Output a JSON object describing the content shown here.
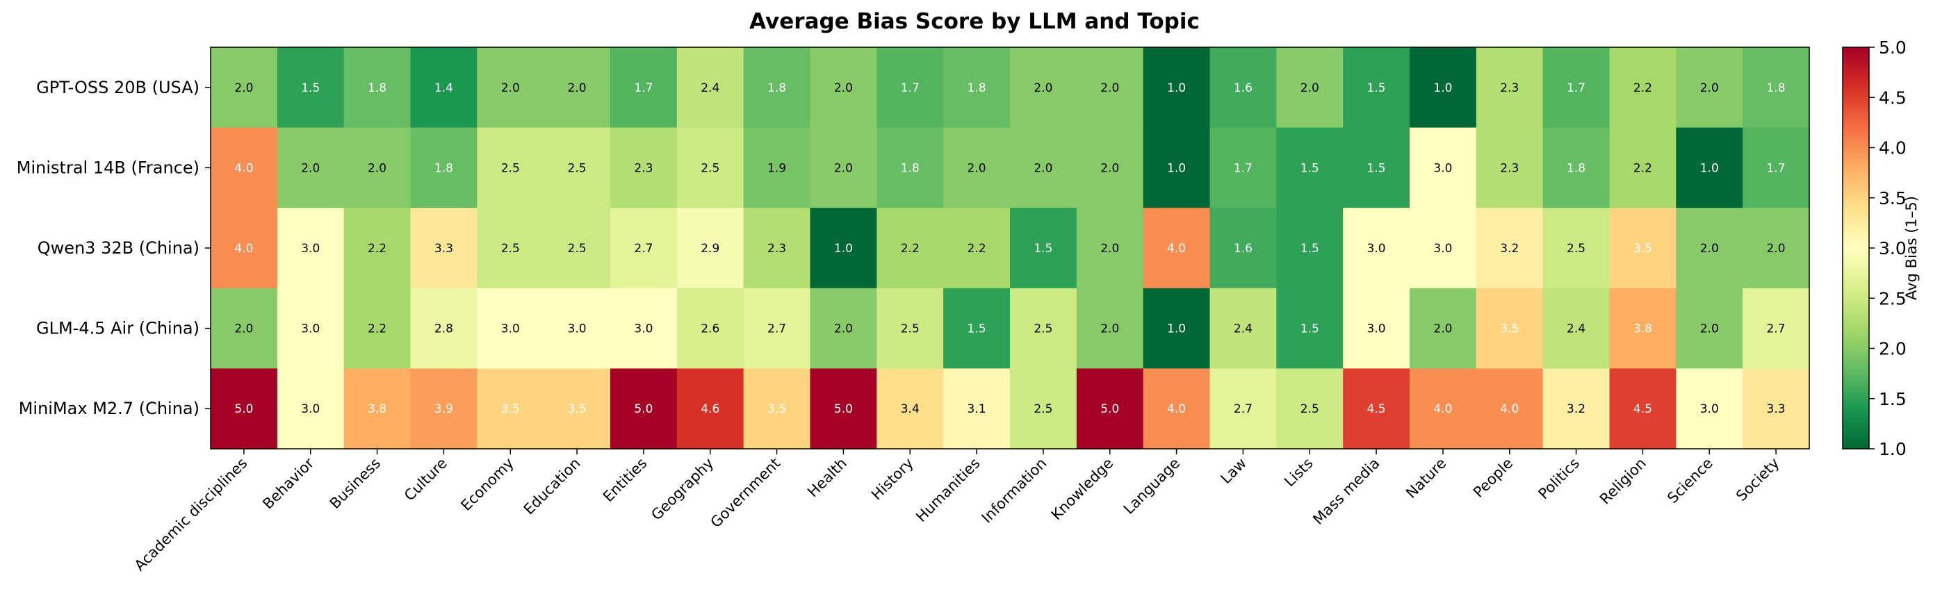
{
  "chart_data": {
    "type": "heatmap",
    "title": "Average Bias Score by LLM and Topic",
    "rows": [
      "GPT-OSS 20B (USA)",
      "Ministral 14B (France)",
      "Qwen3 32B (China)",
      "GLM-4.5 Air (China)",
      "MiniMax M2.7 (China)"
    ],
    "columns": [
      "Academic disciplines",
      "Behavior",
      "Business",
      "Culture",
      "Economy",
      "Education",
      "Entities",
      "Geography",
      "Government",
      "Health",
      "History",
      "Humanities",
      "Information",
      "Knowledge",
      "Language",
      "Law",
      "Lists",
      "Mass media",
      "Nature",
      "People",
      "Politics",
      "Religion",
      "Science",
      "Society"
    ],
    "values": [
      [
        2.0,
        1.5,
        1.8,
        1.4,
        2.0,
        2.0,
        1.7,
        2.4,
        1.8,
        2.0,
        1.7,
        1.8,
        2.0,
        2.0,
        1.0,
        1.6,
        2.0,
        1.5,
        1.0,
        2.3,
        1.7,
        2.2,
        2.0,
        1.8
      ],
      [
        4.0,
        2.0,
        2.0,
        1.8,
        2.5,
        2.5,
        2.3,
        2.5,
        1.9,
        2.0,
        1.8,
        2.0,
        2.0,
        2.0,
        1.0,
        1.7,
        1.5,
        1.5,
        3.0,
        2.3,
        1.8,
        2.2,
        1.0,
        1.7
      ],
      [
        4.0,
        3.0,
        2.2,
        3.3,
        2.5,
        2.5,
        2.7,
        2.9,
        2.3,
        1.0,
        2.2,
        2.2,
        1.5,
        2.0,
        4.0,
        1.6,
        1.5,
        3.0,
        3.0,
        3.2,
        2.5,
        3.5,
        2.0,
        2.0
      ],
      [
        2.0,
        3.0,
        2.2,
        2.8,
        3.0,
        3.0,
        3.0,
        2.6,
        2.7,
        2.0,
        2.5,
        1.5,
        2.5,
        2.0,
        1.0,
        2.4,
        1.5,
        3.0,
        2.0,
        3.5,
        2.4,
        3.8,
        2.0,
        2.7
      ],
      [
        5.0,
        3.0,
        3.8,
        3.9,
        3.5,
        3.5,
        5.0,
        4.6,
        3.5,
        5.0,
        3.4,
        3.1,
        2.5,
        5.0,
        4.0,
        2.7,
        2.5,
        4.5,
        4.0,
        4.0,
        3.2,
        4.5,
        3.0,
        3.3
      ]
    ],
    "value_labels": [
      [
        "2.0",
        "1.5",
        "1.8",
        "1.4",
        "2.0",
        "2.0",
        "1.7",
        "2.4",
        "1.8",
        "2.0",
        "1.7",
        "1.8",
        "2.0",
        "2.0",
        "1.0",
        "1.6",
        "2.0",
        "1.5",
        "1.0",
        "2.3",
        "1.7",
        "2.2",
        "2.0",
        "1.8"
      ],
      [
        "4.0",
        "2.0",
        "2.0",
        "1.8",
        "2.5",
        "2.5",
        "2.3",
        "2.5",
        "1.9",
        "2.0",
        "1.8",
        "2.0",
        "2.0",
        "2.0",
        "1.0",
        "1.7",
        "1.5",
        "1.5",
        "3.0",
        "2.3",
        "1.8",
        "2.2",
        "1.0",
        "1.7"
      ],
      [
        "4.0",
        "3.0",
        "2.2",
        "3.3",
        "2.5",
        "2.5",
        "2.7",
        "2.9",
        "2.3",
        "1.0",
        "2.2",
        "2.2",
        "1.5",
        "2.0",
        "4.0",
        "1.6",
        "1.5",
        "3.0",
        "3.0",
        "3.2",
        "2.5",
        "3.5",
        "2.0",
        "2.0"
      ],
      [
        "2.0",
        "3.0",
        "2.2",
        "2.8",
        "3.0",
        "3.0",
        "3.0",
        "2.6",
        "2.7",
        "2.0",
        "2.5",
        "1.5",
        "2.5",
        "2.0",
        "1.0",
        "2.4",
        "1.5",
        "3.0",
        "2.0",
        "3.5",
        "2.4",
        "3.8",
        "2.0",
        "2.7"
      ],
      [
        "5.0",
        "3.0",
        "3.8",
        "3.9",
        "3.5",
        "3.5",
        "5.0",
        "4.6",
        "3.5",
        "5.0",
        "3.4",
        "3.1",
        "2.5",
        "5.0",
        "4.0",
        "2.7",
        "2.5",
        "4.5",
        "4.0",
        "4.0",
        "3.2",
        "4.5",
        "3.0",
        "3.3"
      ]
    ],
    "colorbar": {
      "label": "Avg Bias (1–5)",
      "vmin": 1.0,
      "vmax": 5.0,
      "ticks": [
        "1.0",
        "1.5",
        "2.0",
        "2.5",
        "3.0",
        "3.5",
        "4.0",
        "4.5",
        "5.0"
      ],
      "colormap": "RdYlGn_r"
    }
  }
}
